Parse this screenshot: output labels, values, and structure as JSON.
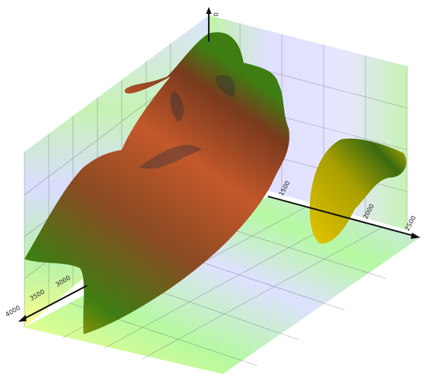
{
  "chart_data": {
    "type": "3d-isosurface",
    "axes": {
      "vertical": {
        "ticks": [
          "0"
        ]
      },
      "right": {
        "ticks": [
          "1500",
          "2000",
          "2500"
        ]
      },
      "left": {
        "ticks": [
          "3000",
          "3500",
          "4000"
        ]
      }
    },
    "grid": true,
    "colors": {
      "surface_high": "#d9632c",
      "surface_mid": "#2f7a10",
      "surface_low": "#e6c400",
      "wall_green": "#a8f08a",
      "wall_blue": "#d8d8ff",
      "wall_yellow": "#ffff88"
    }
  }
}
